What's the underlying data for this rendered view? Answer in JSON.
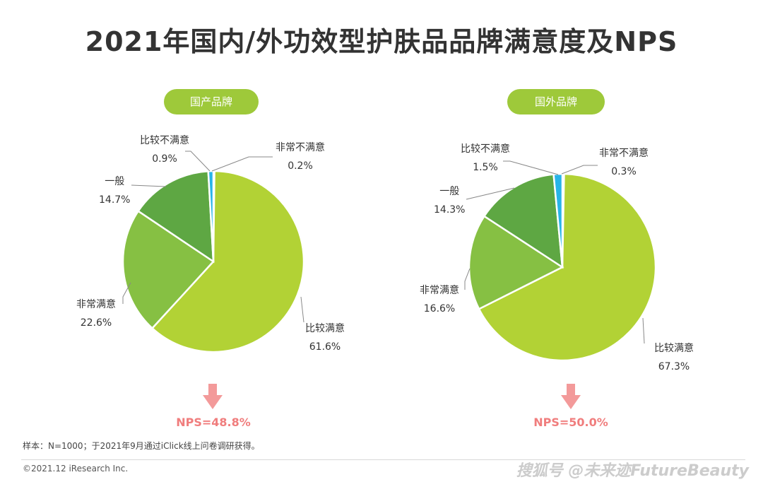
{
  "title": "2021年国内/外功效型护肤品品牌满意度及NPS",
  "chart_data": [
    {
      "type": "pie",
      "title": "国产品牌",
      "slices": [
        {
          "label": "比较满意",
          "value": 61.6,
          "display": "61.6%",
          "color": "#b2d235"
        },
        {
          "label": "非常满意",
          "value": 22.6,
          "display": "22.6%",
          "color": "#86c043"
        },
        {
          "label": "一般",
          "value": 14.7,
          "display": "14.7%",
          "color": "#5ea743"
        },
        {
          "label": "比较不满意",
          "value": 0.9,
          "display": "0.9%",
          "color": "#27b4e8"
        },
        {
          "label": "非常不满意",
          "value": 0.2,
          "display": "0.2%",
          "color": "#1f6fb3"
        }
      ],
      "nps": "NPS=48.8%"
    },
    {
      "type": "pie",
      "title": "国外品牌",
      "slices": [
        {
          "label": "比较满意",
          "value": 67.3,
          "display": "67.3%",
          "color": "#b2d235"
        },
        {
          "label": "非常满意",
          "value": 16.6,
          "display": "16.6%",
          "color": "#86c043"
        },
        {
          "label": "一般",
          "value": 14.3,
          "display": "14.3%",
          "color": "#5ea743"
        },
        {
          "label": "比较不满意",
          "value": 1.5,
          "display": "1.5%",
          "color": "#27b4e8"
        },
        {
          "label": "非常不满意",
          "value": 0.3,
          "display": "0.3%",
          "color": "#1f6fb3"
        }
      ],
      "nps": "NPS=50.0%"
    }
  ],
  "footnote": "样本：N=1000；于2021年9月通过iClick线上问卷调研获得。",
  "copyright": "©2021.12 iResearch Inc.",
  "watermark": "搜狐号 @未来迹FutureBeauty"
}
